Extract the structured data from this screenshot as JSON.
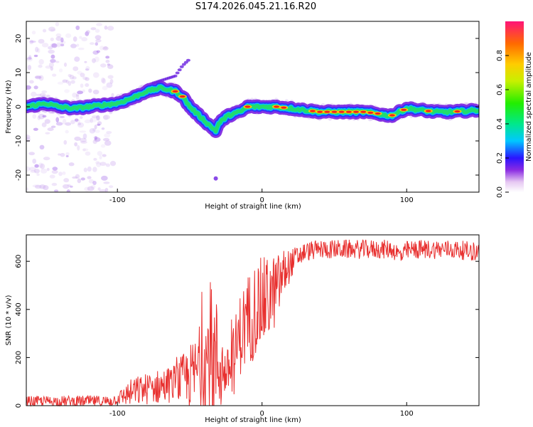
{
  "title": "S174.2026.045.21.16.R20",
  "chart_data": [
    {
      "type": "heatmap",
      "xlabel": "Height of straight line (km)",
      "ylabel": "Frequency (Hz)",
      "xlim": [
        -163,
        150
      ],
      "ylim": [
        -25,
        25
      ],
      "xticks": [
        -100,
        0,
        100
      ],
      "xtick_labels": [
        "-100",
        "0",
        "100"
      ],
      "yticks": [
        -20,
        -10,
        0,
        10,
        20
      ],
      "ytick_labels": [
        "-20",
        "-10",
        "0",
        "10",
        "20"
      ],
      "ridge": {
        "x": [
          -163,
          -150,
          -140,
          -130,
          -120,
          -110,
          -100,
          -90,
          -80,
          -70,
          -60,
          -55,
          -50,
          -45,
          -40,
          -35,
          -32,
          -30,
          -25,
          -20,
          -15,
          -10,
          -5,
          0,
          10,
          20,
          30,
          40,
          50,
          60,
          70,
          80,
          85,
          90,
          95,
          100,
          110,
          120,
          130,
          150
        ],
        "y": [
          0,
          1,
          0,
          -0.5,
          0,
          0.5,
          1,
          2.5,
          4.5,
          5.5,
          4.5,
          3,
          0,
          -2,
          -4,
          -6,
          -7,
          -5,
          -3,
          -2,
          -1.5,
          0,
          0,
          0,
          0,
          -0.5,
          -1,
          -1.5,
          -1.5,
          -1.5,
          -1.5,
          -2,
          -2.5,
          -2.5,
          -1.5,
          -0.5,
          -1,
          -1.5,
          -1.5,
          -1
        ]
      },
      "colorbar": {
        "label": "Normalized spectral amplitude",
        "ticks": [
          "0.0",
          "0.2",
          "0.4",
          "0.6",
          "0.8"
        ],
        "range": [
          0,
          1
        ]
      }
    },
    {
      "type": "line",
      "series_name": "SNR",
      "xlabel": "Height of straight line (km)",
      "ylabel": "SNR (10 * v/v)",
      "xlim": [
        -163,
        150
      ],
      "ylim": [
        0,
        710
      ],
      "xticks": [
        -100,
        0,
        100
      ],
      "xtick_labels": [
        "-100",
        "0",
        "100"
      ],
      "yticks": [
        0,
        200,
        400,
        600
      ],
      "ytick_labels": [
        "0",
        "200",
        "400",
        "600"
      ],
      "color": "#e8302f",
      "trend": {
        "x": [
          -163,
          -130,
          -105,
          -100,
          -90,
          -80,
          -70,
          -60,
          -50,
          -45,
          -40,
          -35,
          -30,
          -25,
          -20,
          -15,
          -10,
          -5,
          0,
          5,
          10,
          15,
          20,
          25,
          30,
          40,
          50,
          60,
          80,
          90,
          97,
          100,
          110,
          130,
          150
        ],
        "y": [
          18,
          18,
          18,
          30,
          55,
          70,
          80,
          95,
          120,
          140,
          180,
          200,
          180,
          130,
          180,
          300,
          350,
          400,
          420,
          450,
          480,
          550,
          590,
          620,
          640,
          650,
          650,
          650,
          650,
          650,
          620,
          645,
          650,
          650,
          640
        ]
      },
      "noise_amplitude": {
        "x": [
          -163,
          -100,
          -90,
          -60,
          -45,
          -35,
          -30,
          -25,
          -20,
          -10,
          0,
          10,
          20,
          30,
          150
        ],
        "y": [
          22,
          25,
          60,
          80,
          160,
          300,
          250,
          80,
          150,
          200,
          200,
          150,
          60,
          40,
          40
        ]
      }
    }
  ]
}
